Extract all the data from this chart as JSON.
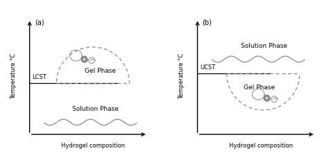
{
  "background_color": "#ffffff",
  "line_color": "#888888",
  "dash_color": "#888888",
  "text_color": "#000000",
  "panel_a_label": "(a)",
  "panel_b_label": "(b)",
  "lcst_label": "LCST",
  "ucst_label": "UCST",
  "gel_phase_label": "Gel Phase",
  "solution_phase_label": "Solution Phase",
  "xlabel": "Hydrogel composition",
  "ylabel": "Temperature °C",
  "fig_width": 4.74,
  "fig_height": 2.34,
  "dpi": 100
}
